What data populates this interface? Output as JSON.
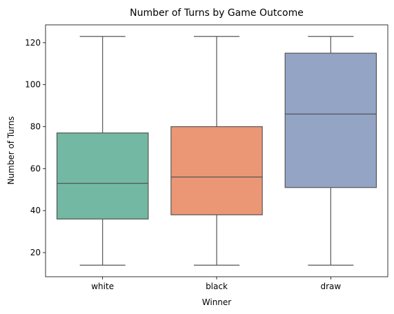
{
  "chart_data": {
    "type": "box",
    "title": "Number of Turns by Game Outcome",
    "xlabel": "Winner",
    "ylabel": "Number of Turns",
    "ylim": [
      8.5,
      128.5
    ],
    "yticks": [
      20,
      40,
      60,
      80,
      100,
      120
    ],
    "grid": false,
    "categories": [
      "white",
      "black",
      "draw"
    ],
    "boxes": [
      {
        "category": "white",
        "whisker_low": 14,
        "q1": 36,
        "median": 53,
        "q3": 77,
        "whisker_high": 123,
        "color": "#73b8a3"
      },
      {
        "category": "black",
        "whisker_low": 14,
        "q1": 38,
        "median": 56,
        "q3": 80,
        "whisker_high": 123,
        "color": "#eb9775"
      },
      {
        "category": "draw",
        "whisker_low": 14,
        "q1": 51,
        "median": 86,
        "q3": 115,
        "whisker_high": 123,
        "color": "#93a4c5"
      }
    ],
    "line_color": "#555555"
  }
}
